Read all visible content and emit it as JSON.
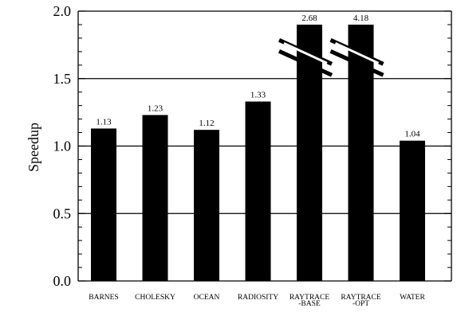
{
  "chart_data": {
    "type": "bar",
    "title": "",
    "xlabel": "",
    "ylabel": "Speedup",
    "ylim": [
      0,
      2.0
    ],
    "yticks": [
      {
        "value": 0.0,
        "label": "0.0"
      },
      {
        "value": 0.5,
        "label": "0.5"
      },
      {
        "value": 1.0,
        "label": "1.0"
      },
      {
        "value": 1.5,
        "label": "1.5"
      },
      {
        "value": 2.0,
        "label": "2.0"
      }
    ],
    "grid": true,
    "categories": [
      [
        "BARNES"
      ],
      [
        "CHOLESKY"
      ],
      [
        "OCEAN"
      ],
      [
        "RADIOSITY"
      ],
      [
        "RAYTRACE",
        "-BASE"
      ],
      [
        "RAYTRACE",
        "-OPT"
      ],
      [
        "WATER"
      ]
    ],
    "values": [
      1.13,
      1.23,
      1.12,
      1.33,
      2.68,
      4.18,
      1.04
    ],
    "value_labels": [
      "1.13",
      "1.23",
      "1.12",
      "1.33",
      "2.68",
      "4.18",
      "1.04"
    ],
    "truncated": [
      false,
      false,
      false,
      false,
      true,
      true,
      false
    ],
    "bar_color": "#000000"
  }
}
